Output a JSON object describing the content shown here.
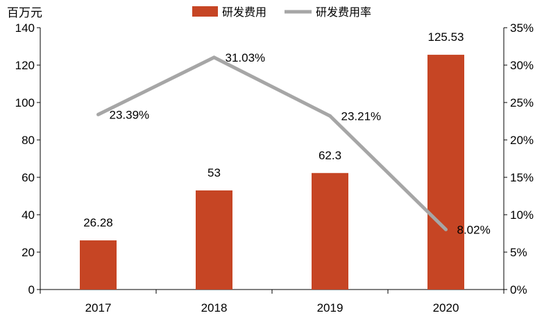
{
  "chart_data": {
    "type": "bar",
    "categories": [
      "2017",
      "2018",
      "2019",
      "2020"
    ],
    "series": [
      {
        "name": "研发费用",
        "type": "bar",
        "axis": "left",
        "color": "#C64524",
        "values": [
          26.28,
          53,
          62.3,
          125.53
        ],
        "labels": [
          "26.28",
          "53",
          "62.3",
          "125.53"
        ]
      },
      {
        "name": "研发费用率",
        "type": "line",
        "axis": "right",
        "color": "#A6A6A6",
        "values": [
          23.39,
          31.03,
          23.21,
          8.02
        ],
        "labels": [
          "23.39%",
          "31.03%",
          "23.21%",
          "8.02%"
        ]
      }
    ],
    "y_left": {
      "label": "百万元",
      "ylim": [
        0,
        140
      ],
      "ticks": [
        "0",
        "20",
        "40",
        "60",
        "80",
        "100",
        "120",
        "140"
      ]
    },
    "y_right": {
      "ylim": [
        0,
        35
      ],
      "ticks": [
        "0%",
        "5%",
        "10%",
        "15%",
        "20%",
        "25%",
        "30%",
        "35%"
      ]
    },
    "grid": false,
    "legend_position": "top-center"
  }
}
